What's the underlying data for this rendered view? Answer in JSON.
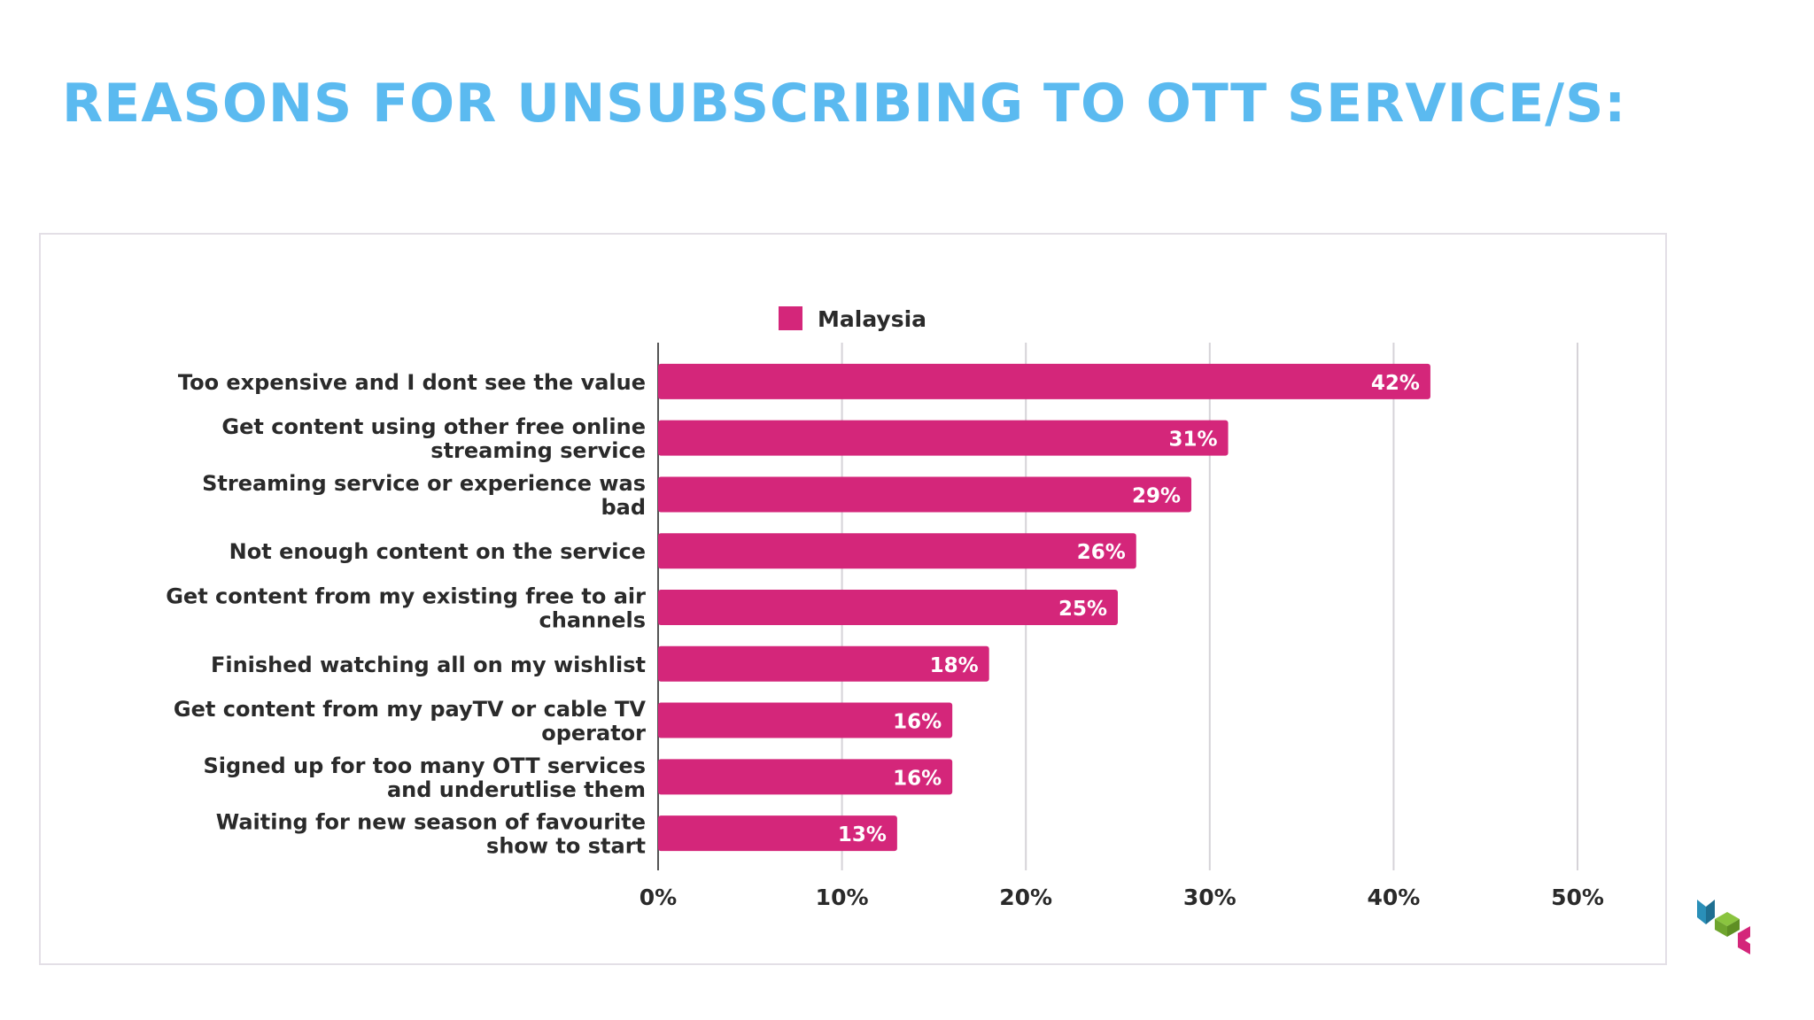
{
  "slide": {
    "title": "REASONS FOR UNSUBSCRIBING TO OTT SERVICE/S:"
  },
  "colors": {
    "title": "#5bbaf0",
    "bar": "#d4267a",
    "text": "#2a2a2a",
    "grid": "#d6d3d8"
  },
  "chart_data": {
    "type": "bar",
    "orientation": "horizontal",
    "categories": [
      [
        "Too expensive and I dont see the value"
      ],
      [
        "Get content using other free online",
        "streaming service"
      ],
      [
        "Streaming service or experience was",
        "bad"
      ],
      [
        "Not enough content on the service"
      ],
      [
        "Get content from my existing free to air",
        "channels"
      ],
      [
        "Finished watching all on my wishlist"
      ],
      [
        "Get content from my payTV or cable TV",
        "operator"
      ],
      [
        "Signed up for too many OTT services",
        "and underutlise them"
      ],
      [
        "Waiting for new season of favourite",
        "show to start"
      ]
    ],
    "series": [
      {
        "name": "Malaysia",
        "values": [
          42,
          31,
          29,
          26,
          25,
          18,
          16,
          16,
          13
        ],
        "data_labels": [
          "42%",
          "31%",
          "29%",
          "26%",
          "25%",
          "18%",
          "16%",
          "16%",
          "13%"
        ]
      }
    ],
    "xlim": [
      0,
      50
    ],
    "x_ticks": [
      0,
      10,
      20,
      30,
      40,
      50
    ],
    "x_tick_labels": [
      "0%",
      "10%",
      "20%",
      "30%",
      "40%",
      "50%"
    ],
    "grid": true,
    "legend_position": "top-center"
  },
  "logo": {
    "icon": "company-logo-icon"
  }
}
